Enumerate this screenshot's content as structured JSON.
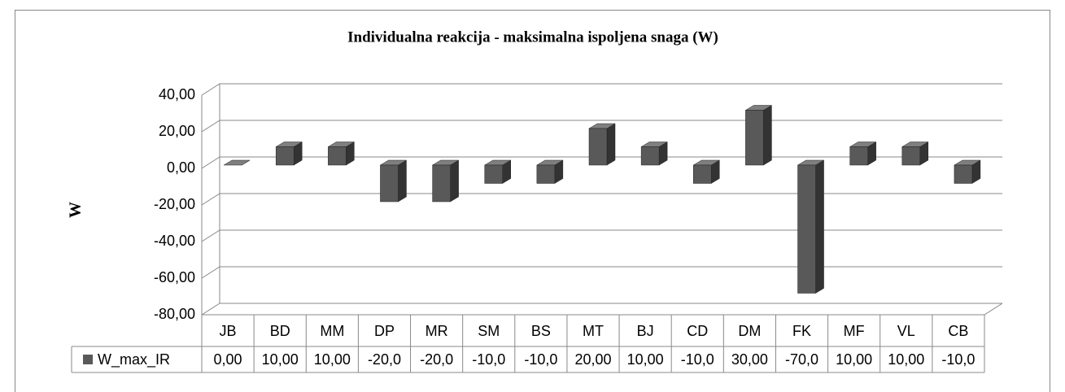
{
  "chart_data": {
    "type": "bar",
    "title": "Individualna reakcija - maksimalna ispoljena snaga (W)",
    "y_label": "W",
    "categories": [
      "JB",
      "BD",
      "MM",
      "DP",
      "MR",
      "SM",
      "BS",
      "MT",
      "BJ",
      "CD",
      "DM",
      "FK",
      "MF",
      "VL",
      "CB"
    ],
    "series": [
      {
        "name": "W_max_IR",
        "color": "#595959",
        "values": [
          0,
          10,
          10,
          -20,
          -20,
          -10,
          -10,
          20,
          10,
          -10,
          30,
          -70,
          10,
          10,
          -10
        ],
        "value_labels": [
          "0,00",
          "10,00",
          "10,00",
          "-20,0",
          "-20,0",
          "-10,0",
          "-10,0",
          "20,00",
          "10,00",
          "-10,0",
          "30,00",
          "-70,0",
          "10,00",
          "10,00",
          "-10,0"
        ]
      }
    ],
    "ylim": [
      -80,
      40
    ],
    "yticks": [
      {
        "value": -80,
        "label": "-80,00"
      },
      {
        "value": -60,
        "label": "-60,00"
      },
      {
        "value": -40,
        "label": "-40,00"
      },
      {
        "value": -20,
        "label": "-20,00"
      },
      {
        "value": 0,
        "label": "0,00"
      },
      {
        "value": 20,
        "label": "20,00"
      },
      {
        "value": 40,
        "label": "40,00"
      }
    ],
    "grid": true
  }
}
